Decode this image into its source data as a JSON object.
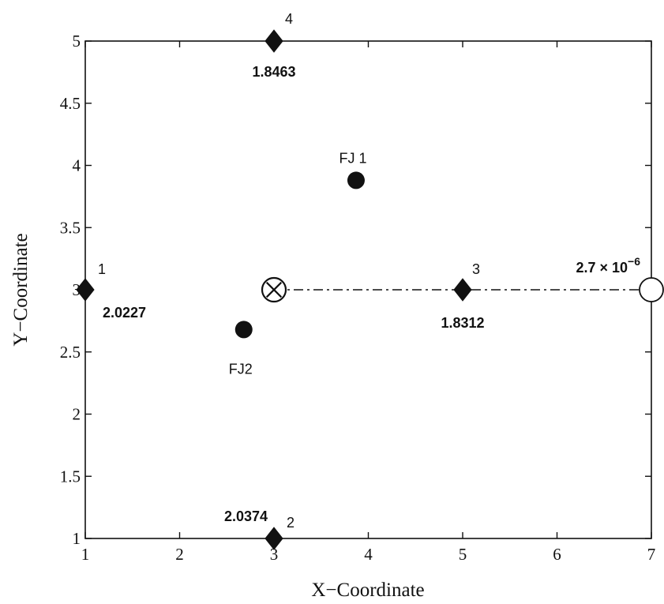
{
  "chart_data": {
    "type": "scatter",
    "xlabel": "X−Coordinate",
    "ylabel": "Y−Coordinate",
    "xlim": [
      1,
      7
    ],
    "ylim": [
      1,
      5
    ],
    "xticks": [
      "1",
      "2",
      "3",
      "4",
      "5",
      "6",
      "7"
    ],
    "yticks": [
      "1",
      "1.5",
      "2",
      "2.5",
      "3",
      "3.5",
      "4",
      "4.5",
      "5"
    ],
    "grid": false,
    "legend": "none",
    "anchors": [
      {
        "id": "1",
        "x": 1,
        "y": 3,
        "value": "2.0227"
      },
      {
        "id": "2",
        "x": 3,
        "y": 1,
        "value": "2.0374"
      },
      {
        "id": "3",
        "x": 5,
        "y": 3,
        "value": "1.8312"
      },
      {
        "id": "4",
        "x": 3,
        "y": 5,
        "value": "1.8463"
      }
    ],
    "jammers": [
      {
        "label": "FJ 1",
        "x": 3.87,
        "y": 3.88
      },
      {
        "label": "FJ2",
        "x": 2.68,
        "y": 2.68
      }
    ],
    "source": {
      "x": 3,
      "y": 3
    },
    "destination": {
      "x": 7,
      "y": 3,
      "value_base": "2.7 × 10",
      "value_exp": "−6"
    },
    "link": {
      "x": [
        3,
        7
      ],
      "y": [
        3,
        3
      ],
      "style": "dash-dot"
    }
  }
}
